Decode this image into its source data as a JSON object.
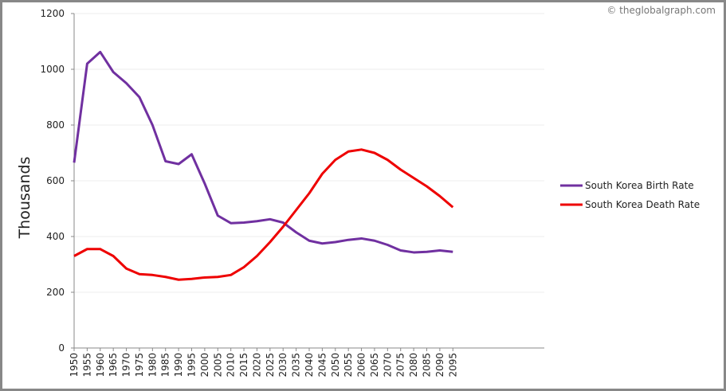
{
  "chart_data": {
    "type": "line",
    "y_label": "Thousands",
    "credit": "© theglobalgraph.com",
    "x": [
      1950,
      1955,
      1960,
      1965,
      1970,
      1975,
      1980,
      1985,
      1990,
      1995,
      2000,
      2005,
      2010,
      2015,
      2020,
      2025,
      2030,
      2035,
      2040,
      2045,
      2050,
      2055,
      2060,
      2065,
      2070,
      2075,
      2080,
      2085,
      2090,
      2095
    ],
    "series": [
      {
        "name": "South Korea Birth Rate",
        "color": "#7030a0",
        "values": [
          665,
          1020,
          1062,
          990,
          950,
          900,
          800,
          670,
          660,
          695,
          590,
          475,
          448,
          450,
          455,
          462,
          450,
          415,
          385,
          375,
          380,
          388,
          393,
          385,
          370,
          350,
          343,
          345,
          350,
          345
        ]
      },
      {
        "name": "South Korea Death Rate",
        "color": "#ee0000",
        "values": [
          330,
          355,
          355,
          330,
          285,
          265,
          262,
          255,
          245,
          248,
          253,
          255,
          262,
          290,
          330,
          380,
          435,
          495,
          555,
          625,
          675,
          705,
          712,
          700,
          675,
          640,
          610,
          580,
          545,
          505
        ]
      }
    ],
    "xlim": [
      1950,
      2130
    ],
    "xticks": [
      1950,
      1955,
      1960,
      1965,
      1970,
      1975,
      1980,
      1985,
      1990,
      1995,
      2000,
      2005,
      2010,
      2015,
      2020,
      2025,
      2030,
      2035,
      2040,
      2045,
      2050,
      2055,
      2060,
      2065,
      2070,
      2075,
      2080,
      2085,
      2090,
      2095
    ],
    "ylim": [
      0,
      1200
    ],
    "yticks": [
      0,
      200,
      400,
      600,
      800,
      1000,
      1200
    ],
    "grid": true
  }
}
